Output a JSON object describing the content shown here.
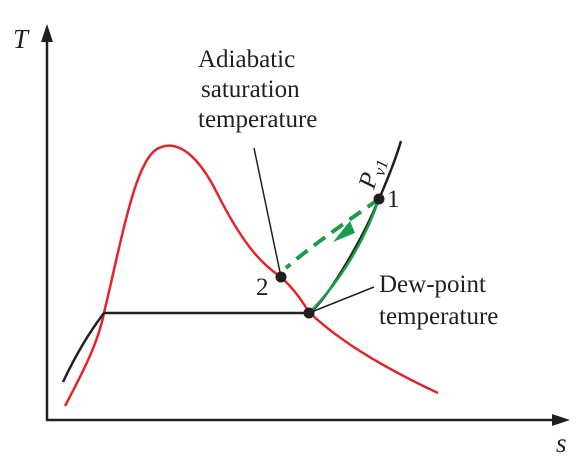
{
  "axes": {
    "y_label": "T",
    "x_label": "s"
  },
  "labels": {
    "adiabatic": [
      "Adiabatic",
      "saturation",
      "temperature"
    ],
    "dew_point": [
      "Dew-point",
      "temperature"
    ],
    "pressure_line": "P",
    "pressure_sub": "v1",
    "point_1": "1",
    "point_2": "2"
  },
  "colors": {
    "saturation_dome": "#e2252b",
    "process_path": "#1a9c4a",
    "lines": "#231f20",
    "text": "#231f20"
  }
}
